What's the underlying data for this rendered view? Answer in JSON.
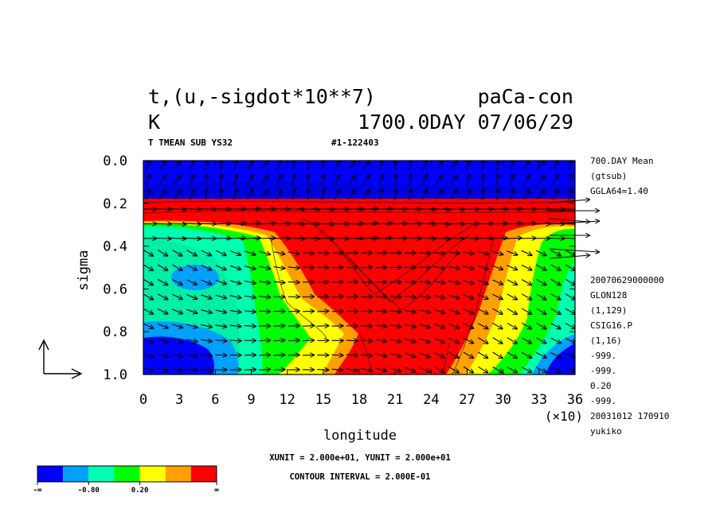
{
  "header": {
    "title_left": "t,(u,-sigdot*10**7)",
    "title_right": "paCa-con",
    "units": "K",
    "time_label": "1700.0DAY 07/06/29",
    "subtitle_left": "T TMEAN SUB YS32",
    "subtitle_right": "#1-122403"
  },
  "right_info": {
    "lines_top": [
      "700.DAY Mean",
      "(gtsub)",
      "GGLA64=1.40"
    ],
    "lines_bottom": [
      "20070629000000",
      "GLON128",
      "(1,129)",
      "CSIG16.P",
      "(1,16)",
      "-999.",
      "-999.",
      "0.20",
      "-999.",
      "20031012 170910",
      "yukiko"
    ]
  },
  "footer": {
    "unit_text": "XUNIT = 2.000e+01, YUNIT = 2.000e+01",
    "contour_text": "CONTOUR INTERVAL = 2.000E-01"
  },
  "colorbar": {
    "colors": [
      "#0000ff",
      "#00a0ff",
      "#00ffb0",
      "#00ff00",
      "#ffff00",
      "#ffa000",
      "#ff0000"
    ],
    "labels": [
      "-∞",
      "-0.80",
      "0.20",
      "∞"
    ]
  },
  "chart_data": {
    "type": "heatmap",
    "xlabel": "longitude",
    "ylabel": "sigma",
    "x_scale_label": "(×10)",
    "xlim": [
      0,
      36
    ],
    "ylim": [
      1.0,
      0.0
    ],
    "x_ticks": [
      "0",
      "3",
      "6",
      "9",
      "12",
      "15",
      "18",
      "21",
      "24",
      "27",
      "30",
      "33",
      "36"
    ],
    "y_ticks": [
      "0.0",
      "0.2",
      "0.4",
      "0.6",
      "0.8",
      "1.0"
    ],
    "contour_interval": 0.2,
    "overlay": "wind vectors (u, -sigdot*10**7)",
    "color_levels": [
      "-∞",
      "-0.80",
      "0.20",
      "∞"
    ],
    "field_regions": [
      {
        "name": "upper negative layer",
        "sigma_range": [
          0.0,
          0.17
        ],
        "value": "< -0.80"
      },
      {
        "name": "warm anomaly",
        "lon_center": 200,
        "value": "> 0.80"
      },
      {
        "name": "cold surface anomaly west",
        "lon_center": 30,
        "sigma_range": [
          0.85,
          1.0
        ],
        "value": "< -0.80"
      },
      {
        "name": "cold surface anomaly east",
        "lon_center": 350,
        "sigma_range": [
          0.9,
          1.0
        ],
        "value": "< -0.80"
      }
    ]
  }
}
